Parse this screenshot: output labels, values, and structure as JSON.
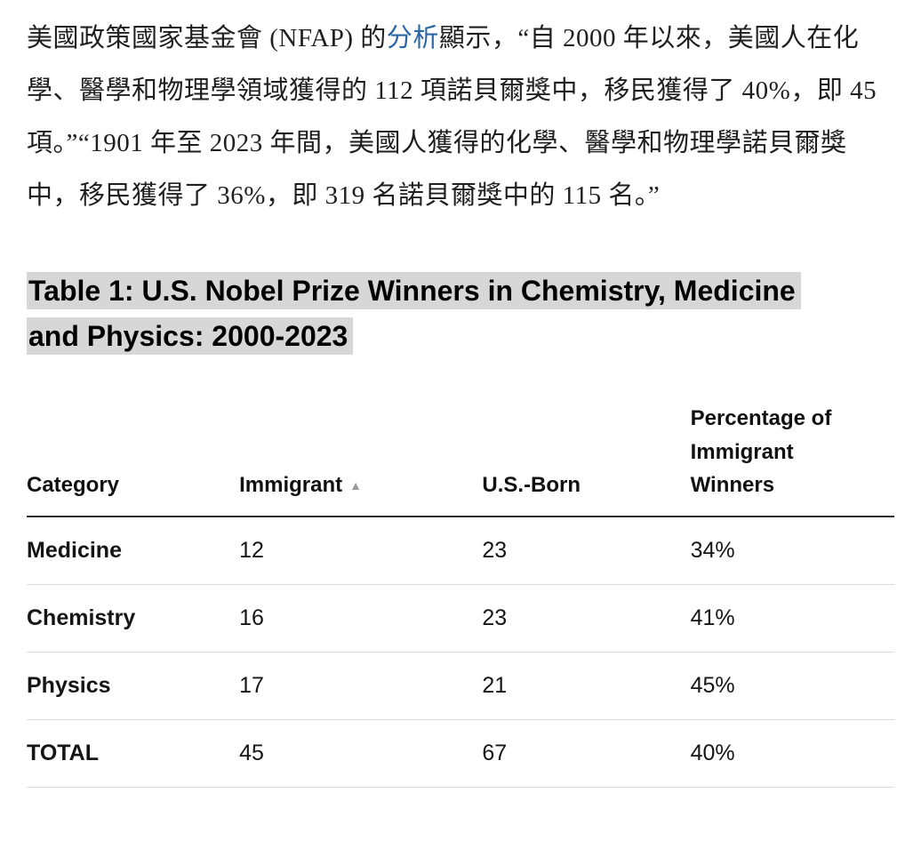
{
  "paragraph": {
    "part1": "美國政策國家基金會 (NFAP) 的",
    "link": "分析",
    "part2": "顯示，“自 2000 年以來，美國人在化學、醫學和物理學領域獲得的 112 項諾貝爾獎中，移民獲得了 40%，即 45 項。”“1901 年至 2023 年間，美國人獲得的化學、醫學和物理學諾貝爾獎中，移民獲得了 36%，即 319 名諾貝爾獎中的 115 名。”"
  },
  "heading": "Table 1: U.S. Nobel Prize Winners in Chemistry, Medicine and Physics: 2000-2023",
  "table": {
    "headers": [
      "Category",
      "Immigrant",
      "U.S.-Born",
      "Percentage of Immigrant Winners"
    ],
    "sort_icon": "▲",
    "rows": [
      {
        "category": "Medicine",
        "immigrant": "12",
        "us_born": "23",
        "pct": "34%"
      },
      {
        "category": "Chemistry",
        "immigrant": "16",
        "us_born": "23",
        "pct": "41%"
      },
      {
        "category": "Physics",
        "immigrant": "17",
        "us_born": "21",
        "pct": "45%"
      },
      {
        "category": "TOTAL",
        "immigrant": "45",
        "us_born": "67",
        "pct": "40%"
      }
    ]
  },
  "colors": {
    "link": "#2a66a5",
    "heading_highlight": "#d7d7d7",
    "header_border": "#2b2b2b",
    "row_divider": "#dcdcdc",
    "sort_icon": "#9a9a9a"
  }
}
